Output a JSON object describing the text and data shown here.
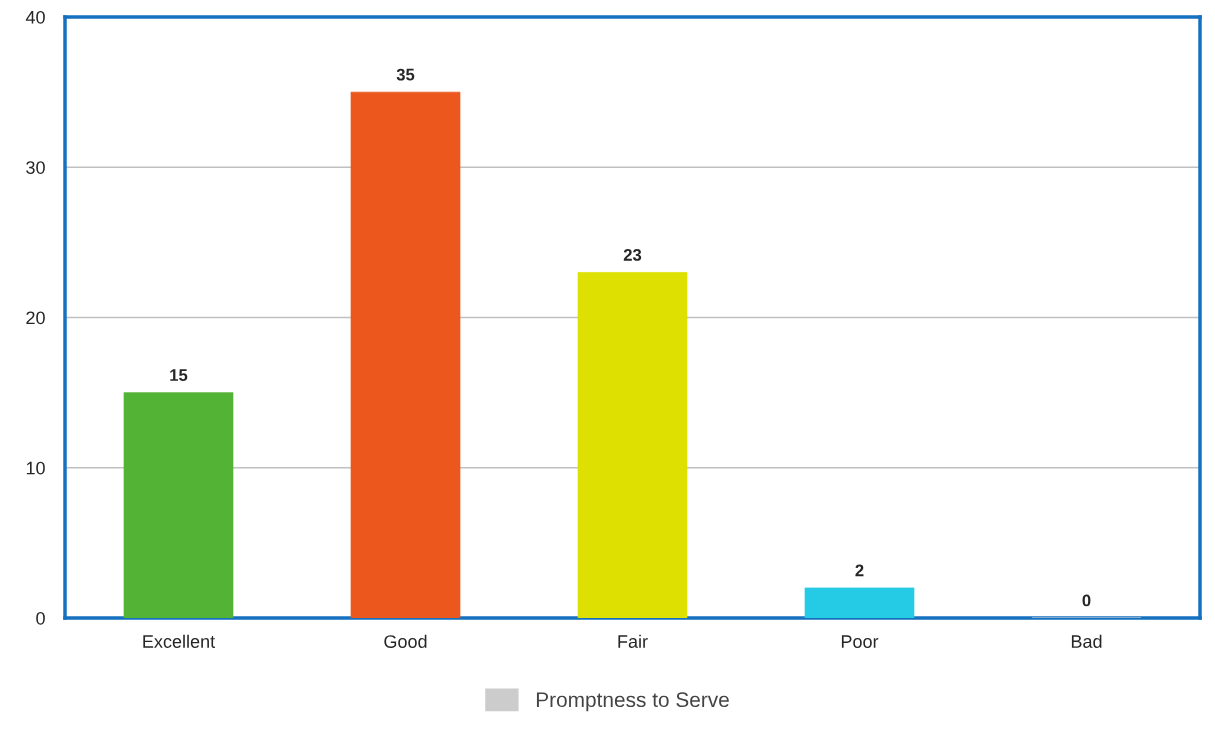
{
  "chart_data": {
    "type": "bar",
    "categories": [
      "Excellent",
      "Good",
      "Fair",
      "Poor",
      "Bad"
    ],
    "series": [
      {
        "name": "Promptness to Serve",
        "color": "#cccccc",
        "colors": [
          "#52b334",
          "#eb571d",
          "#dde000",
          "#25cbe4",
          "#d9d9d9"
        ],
        "values": [
          15,
          35,
          23,
          2,
          0
        ]
      }
    ],
    "ylim": [
      0,
      40
    ],
    "yticks": [
      0,
      10,
      20,
      30,
      40
    ],
    "grid": "y",
    "legend": "bottom",
    "data_labels": true
  }
}
